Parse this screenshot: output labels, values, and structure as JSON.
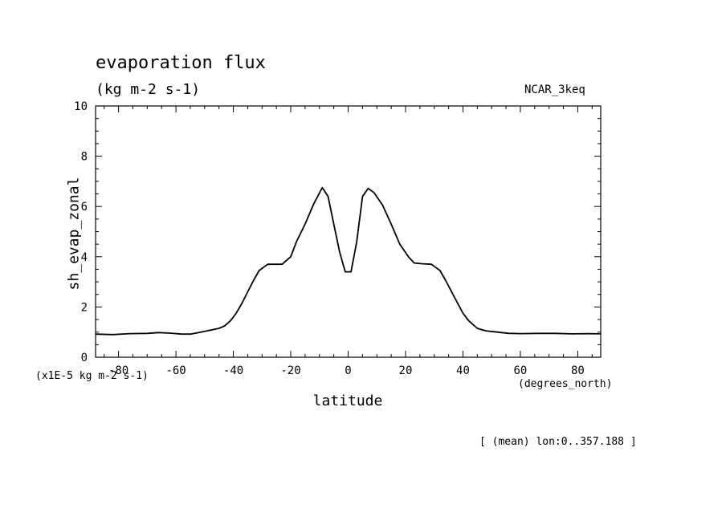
{
  "header": {
    "title": "evaporation flux",
    "units": "(kg m-2 s-1)",
    "model": "NCAR_3keq"
  },
  "footer": {
    "scale_note": "(x1E-5 kg m-2 s-1)",
    "x_units": "(degrees_north)",
    "averaging_note": "[ (mean) lon:0..357.188 ]"
  },
  "chart_data": {
    "type": "line",
    "title": "evaporation flux",
    "subtitle": "(kg m-2 s-1)",
    "xlabel": "latitude",
    "ylabel": "sh_evap_zonal",
    "xlim": [
      -88,
      88
    ],
    "ylim": [
      0,
      10
    ],
    "x_ticks": [
      -80,
      -60,
      -40,
      -20,
      0,
      20,
      40,
      60,
      80
    ],
    "y_ticks": [
      0,
      2,
      4,
      6,
      8,
      10
    ],
    "grid": false,
    "line_color": "#000000",
    "series": [
      {
        "x": [
          -88,
          -82,
          -76,
          -70,
          -66,
          -62,
          -58,
          -55,
          -52,
          -48,
          -45,
          -43,
          -41,
          -39,
          -37,
          -35,
          -33,
          -31,
          -28,
          -26,
          -23,
          -20,
          -18,
          -15,
          -12,
          -9,
          -7,
          -5,
          -3,
          -1,
          1,
          3,
          5,
          7,
          9,
          12,
          15,
          18,
          21,
          23,
          26,
          29,
          32,
          34,
          37,
          40,
          42,
          45,
          48,
          52,
          56,
          60,
          66,
          72,
          78,
          84,
          88
        ],
        "y": [
          0.92,
          0.9,
          0.94,
          0.95,
          0.98,
          0.96,
          0.92,
          0.92,
          0.98,
          1.08,
          1.15,
          1.25,
          1.45,
          1.75,
          2.15,
          2.6,
          3.05,
          3.45,
          3.7,
          3.7,
          3.7,
          4.0,
          4.6,
          5.3,
          6.1,
          6.75,
          6.4,
          5.3,
          4.2,
          3.4,
          3.4,
          4.6,
          6.4,
          6.72,
          6.55,
          6.05,
          5.3,
          4.5,
          4.0,
          3.75,
          3.72,
          3.7,
          3.45,
          3.05,
          2.4,
          1.75,
          1.45,
          1.15,
          1.05,
          1.0,
          0.95,
          0.94,
          0.95,
          0.95,
          0.93,
          0.94,
          0.93
        ]
      }
    ]
  }
}
